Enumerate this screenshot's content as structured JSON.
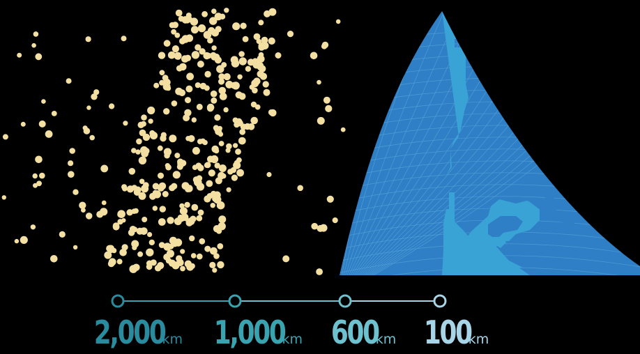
{
  "colors": {
    "background": "#000000",
    "particle": "#f3dfa2",
    "globe_dark": "#2f7fc6",
    "globe_tile_line": "#5aa6d9",
    "land_highlight": "#3aa3d6"
  },
  "scale": {
    "points": [
      {
        "value": "2,000",
        "unit": "km",
        "color": "#2a8a9e"
      },
      {
        "value": "1,000",
        "unit": "km",
        "color": "#3aa3b0"
      },
      {
        "value": "600",
        "unit": "km",
        "color": "#6ec2cf"
      },
      {
        "value": "100",
        "unit": "km",
        "color": "#a8d4e8"
      }
    ]
  }
}
